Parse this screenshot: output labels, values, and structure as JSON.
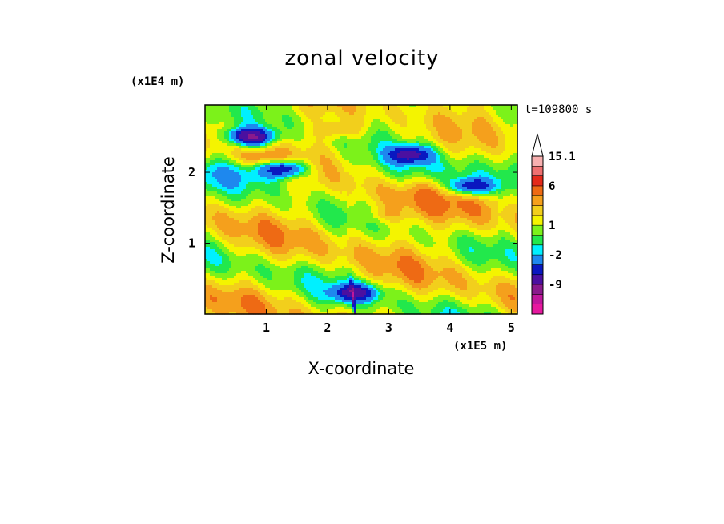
{
  "chart_data": {
    "type": "heatmap",
    "title": "zonal velocity",
    "xlabel": "X-coordinate",
    "ylabel": "Z-coordinate",
    "x_unit": "(x1E5 m)",
    "y_unit": "(x1E4 m)",
    "time_label": "t=109800 s",
    "xlim": [
      0,
      5.1
    ],
    "ylim": [
      0,
      2.95
    ],
    "x_ticks": [
      1,
      2,
      3,
      4,
      5
    ],
    "y_ticks": [
      1,
      2
    ],
    "colorbar": {
      "labels": [
        "15.1",
        "6",
        "1",
        "-2",
        "-9"
      ],
      "label_levels": [
        15.1,
        6,
        1,
        -2,
        -9
      ],
      "levels": [
        -15,
        -12,
        -9,
        -6,
        -4,
        -2,
        -1,
        0,
        1,
        2,
        3,
        4,
        6,
        9,
        12,
        15.1
      ],
      "colors": [
        "#e6199f",
        "#c0179c",
        "#8a1a8c",
        "#4b10a0",
        "#0a18c0",
        "#1e88ee",
        "#00f0ff",
        "#22e84c",
        "#7cf21a",
        "#f4f400",
        "#f2cf1c",
        "#f5a01c",
        "#ee6a14",
        "#e42a1a",
        "#ee7070",
        "#f8b0b0",
        "#ffffff"
      ]
    },
    "features": [
      {
        "name": "lower-left jet core",
        "x": 0.75,
        "z": 2.5,
        "value": -9
      },
      {
        "name": "upper-mid negative core",
        "x": 1.3,
        "z": 2.05,
        "value": -6
      },
      {
        "name": "right negative core",
        "x": 3.35,
        "z": 2.25,
        "value": -6
      },
      {
        "name": "right negative core 2",
        "x": 4.35,
        "z": 1.8,
        "value": -6
      },
      {
        "name": "top-left positive band",
        "x": 0.9,
        "z": 2.2,
        "value": 4
      },
      {
        "name": "upper positive band",
        "x": 2.2,
        "z": 2.6,
        "value": 4
      },
      {
        "name": "positive patch",
        "x": 2.9,
        "z": 1.4,
        "value": 3
      },
      {
        "name": "surface plume",
        "x": 2.45,
        "z": 0.3,
        "value": -6
      }
    ]
  }
}
